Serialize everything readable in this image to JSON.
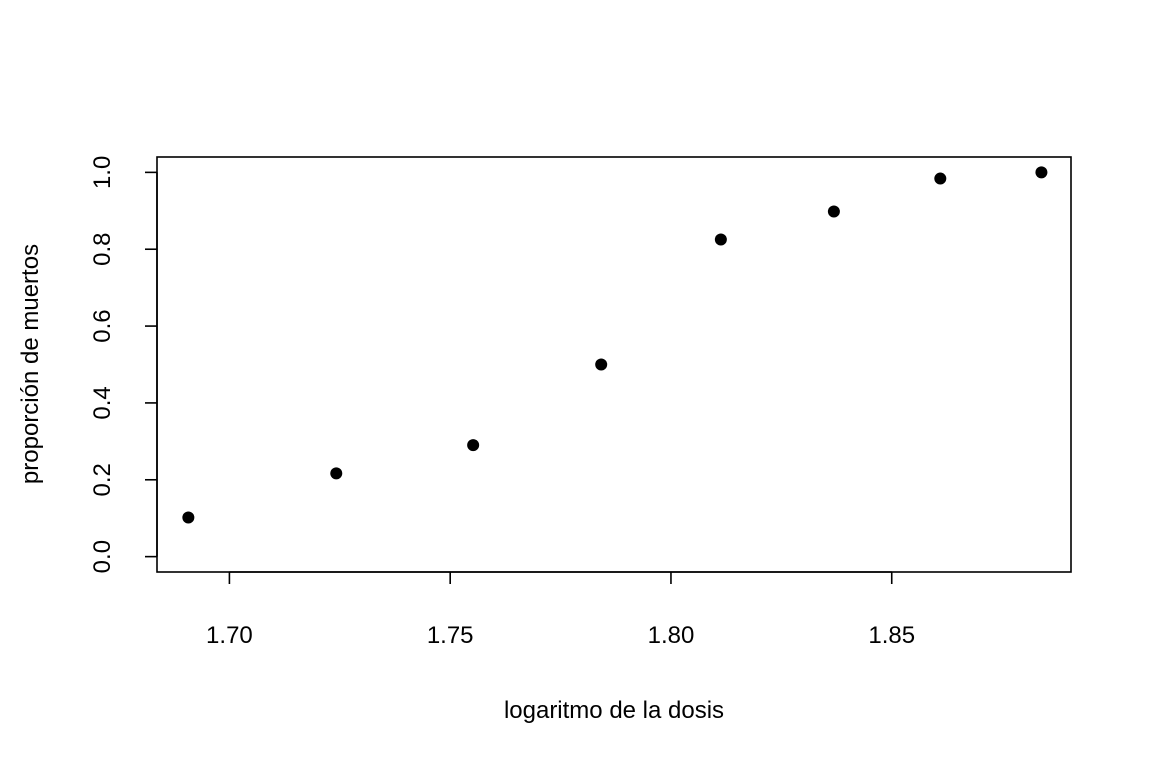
{
  "chart_data": {
    "type": "scatter",
    "title": "",
    "xlabel": "logaritmo de la dosis",
    "ylabel": "proporción de muertos",
    "xlim": [
      1.6836,
      1.8906
    ],
    "ylim": [
      -0.04,
      1.04
    ],
    "x_ticks": [
      1.7,
      1.75,
      1.8,
      1.85
    ],
    "x_tick_labels": [
      "1.70",
      "1.75",
      "1.80",
      "1.85"
    ],
    "y_ticks": [
      0.0,
      0.2,
      0.4,
      0.6,
      0.8,
      1.0
    ],
    "y_tick_labels": [
      "0.0",
      "0.2",
      "0.4",
      "0.6",
      "0.8",
      "1.0"
    ],
    "grid": false,
    "legend": "none",
    "marker_color": "#000000",
    "points": [
      {
        "x": 1.6907,
        "y": 0.1017
      },
      {
        "x": 1.7242,
        "y": 0.2167
      },
      {
        "x": 1.7552,
        "y": 0.2903
      },
      {
        "x": 1.7842,
        "y": 0.5
      },
      {
        "x": 1.8113,
        "y": 0.8254
      },
      {
        "x": 1.8369,
        "y": 0.8983
      },
      {
        "x": 1.861,
        "y": 0.9839
      },
      {
        "x": 1.8839,
        "y": 1.0
      }
    ]
  }
}
